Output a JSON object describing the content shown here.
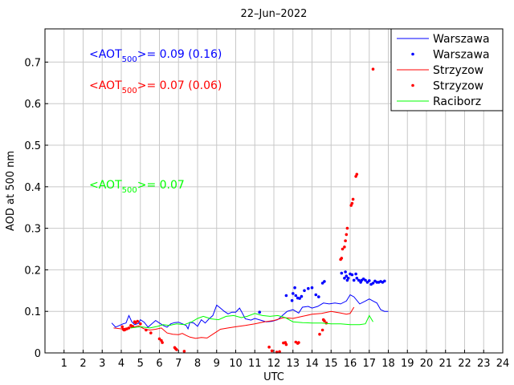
{
  "chart_data": {
    "type": "line",
    "title": "22–Jun–2022",
    "xlabel": "UTC",
    "ylabel": "AOD at 500 nm",
    "xlim": [
      0,
      24
    ],
    "ylim": [
      0,
      0.78
    ],
    "xticks": [
      "1",
      "2",
      "3",
      "4",
      "5",
      "6",
      "7",
      "8",
      "9",
      "10",
      "11",
      "12",
      "13",
      "14",
      "15",
      "16",
      "17",
      "18",
      "19",
      "20",
      "21",
      "22",
      "23",
      "24"
    ],
    "yticks": [
      "0",
      "0.1",
      "0.2",
      "0.3",
      "0.4",
      "0.5",
      "0.6",
      "0.7"
    ],
    "grid": true,
    "legend_position": "top-right",
    "annotations": [
      {
        "prefix": "<AOT",
        "sub": "500",
        "suffix": ">= 0.09 (0.16)",
        "color": "#0000ff"
      },
      {
        "prefix": "<AOT",
        "sub": "500",
        "suffix": ">= 0.07 (0.06)",
        "color": "#ff0000"
      },
      {
        "prefix": "<AOT",
        "sub": "500",
        "suffix": ">= 0.07",
        "color": "#00ff00"
      }
    ],
    "series": [
      {
        "name": "Warszawa",
        "style": "line",
        "color": "#0000ff",
        "points": [
          [
            3.5,
            0.072
          ],
          [
            3.7,
            0.062
          ],
          [
            3.9,
            0.066
          ],
          [
            4.1,
            0.07
          ],
          [
            4.25,
            0.072
          ],
          [
            4.4,
            0.09
          ],
          [
            4.55,
            0.075
          ],
          [
            4.7,
            0.068
          ],
          [
            4.9,
            0.071
          ],
          [
            5.0,
            0.08
          ],
          [
            5.2,
            0.074
          ],
          [
            5.4,
            0.062
          ],
          [
            5.6,
            0.07
          ],
          [
            5.8,
            0.078
          ],
          [
            6.0,
            0.072
          ],
          [
            6.2,
            0.066
          ],
          [
            6.4,
            0.062
          ],
          [
            6.6,
            0.07
          ],
          [
            6.8,
            0.073
          ],
          [
            7.0,
            0.074
          ],
          [
            7.2,
            0.07
          ],
          [
            7.4,
            0.066
          ],
          [
            7.5,
            0.058
          ],
          [
            7.6,
            0.074
          ],
          [
            7.8,
            0.072
          ],
          [
            8.0,
            0.064
          ],
          [
            8.2,
            0.08
          ],
          [
            8.4,
            0.072
          ],
          [
            8.6,
            0.082
          ],
          [
            8.8,
            0.09
          ],
          [
            9.0,
            0.115
          ],
          [
            9.2,
            0.108
          ],
          [
            9.4,
            0.1
          ],
          [
            9.6,
            0.094
          ],
          [
            9.8,
            0.098
          ],
          [
            10.0,
            0.098
          ],
          [
            10.2,
            0.108
          ],
          [
            10.3,
            0.1
          ],
          [
            10.5,
            0.082
          ],
          [
            10.8,
            0.079
          ],
          [
            11.0,
            0.083
          ],
          [
            11.3,
            0.079
          ],
          [
            11.6,
            0.075
          ],
          [
            11.9,
            0.076
          ],
          [
            12.2,
            0.08
          ],
          [
            12.5,
            0.092
          ],
          [
            12.7,
            0.1
          ],
          [
            13.0,
            0.104
          ],
          [
            13.3,
            0.096
          ],
          [
            13.5,
            0.11
          ],
          [
            13.8,
            0.112
          ],
          [
            14.0,
            0.108
          ],
          [
            14.3,
            0.112
          ],
          [
            14.6,
            0.12
          ],
          [
            14.9,
            0.118
          ],
          [
            15.2,
            0.12
          ],
          [
            15.5,
            0.118
          ],
          [
            15.8,
            0.125
          ],
          [
            16.0,
            0.14
          ],
          [
            16.2,
            0.135
          ],
          [
            16.5,
            0.118
          ],
          [
            16.8,
            0.125
          ],
          [
            17.0,
            0.13
          ],
          [
            17.2,
            0.125
          ],
          [
            17.4,
            0.12
          ],
          [
            17.6,
            0.104
          ],
          [
            17.8,
            0.1
          ],
          [
            18.0,
            0.1
          ]
        ]
      },
      {
        "name": "Warszawa",
        "style": "points",
        "color": "#0000ff",
        "points": [
          [
            11.25,
            0.098
          ],
          [
            12.65,
            0.138
          ],
          [
            12.95,
            0.126
          ],
          [
            13.0,
            0.143
          ],
          [
            13.1,
            0.157
          ],
          [
            13.15,
            0.138
          ],
          [
            13.25,
            0.132
          ],
          [
            13.35,
            0.131
          ],
          [
            13.45,
            0.136
          ],
          [
            13.6,
            0.15
          ],
          [
            13.8,
            0.155
          ],
          [
            14.0,
            0.157
          ],
          [
            14.2,
            0.14
          ],
          [
            14.35,
            0.135
          ],
          [
            14.55,
            0.168
          ],
          [
            14.65,
            0.172
          ],
          [
            15.55,
            0.192
          ],
          [
            15.7,
            0.18
          ],
          [
            15.75,
            0.195
          ],
          [
            15.8,
            0.185
          ],
          [
            15.85,
            0.175
          ],
          [
            15.9,
            0.18
          ],
          [
            16.0,
            0.19
          ],
          [
            16.1,
            0.188
          ],
          [
            16.2,
            0.175
          ],
          [
            16.3,
            0.19
          ],
          [
            16.35,
            0.18
          ],
          [
            16.45,
            0.175
          ],
          [
            16.55,
            0.17
          ],
          [
            16.6,
            0.175
          ],
          [
            16.7,
            0.178
          ],
          [
            16.8,
            0.175
          ],
          [
            16.9,
            0.17
          ],
          [
            17.0,
            0.174
          ],
          [
            17.1,
            0.165
          ],
          [
            17.2,
            0.168
          ],
          [
            17.3,
            0.173
          ],
          [
            17.4,
            0.17
          ],
          [
            17.5,
            0.17
          ],
          [
            17.6,
            0.172
          ],
          [
            17.7,
            0.17
          ],
          [
            17.8,
            0.173
          ]
        ]
      },
      {
        "name": "Strzyzow",
        "style": "line",
        "color": "#ff0000",
        "points": [
          [
            3.6,
            0.06
          ],
          [
            4.0,
            0.058
          ],
          [
            4.3,
            0.06
          ],
          [
            4.6,
            0.062
          ],
          [
            4.9,
            0.065
          ],
          [
            5.2,
            0.058
          ],
          [
            5.5,
            0.055
          ],
          [
            5.8,
            0.057
          ],
          [
            6.1,
            0.06
          ],
          [
            6.4,
            0.048
          ],
          [
            6.7,
            0.045
          ],
          [
            7.0,
            0.044
          ],
          [
            7.2,
            0.047
          ],
          [
            7.4,
            0.042
          ],
          [
            7.6,
            0.038
          ],
          [
            7.9,
            0.035
          ],
          [
            8.2,
            0.037
          ],
          [
            8.5,
            0.036
          ],
          [
            8.8,
            0.045
          ],
          [
            9.2,
            0.057
          ],
          [
            9.6,
            0.06
          ],
          [
            10.0,
            0.063
          ],
          [
            10.5,
            0.066
          ],
          [
            11.0,
            0.07
          ],
          [
            11.5,
            0.075
          ],
          [
            12.0,
            0.078
          ],
          [
            12.5,
            0.085
          ],
          [
            13.0,
            0.083
          ],
          [
            13.5,
            0.088
          ],
          [
            14.0,
            0.093
          ],
          [
            14.5,
            0.095
          ],
          [
            15.0,
            0.1
          ],
          [
            15.5,
            0.096
          ],
          [
            15.8,
            0.093
          ],
          [
            16.0,
            0.095
          ],
          [
            16.2,
            0.11
          ]
        ]
      },
      {
        "name": "Strzyzow",
        "style": "points",
        "color": "#ff0000",
        "points": [
          [
            4.05,
            0.063
          ],
          [
            4.1,
            0.057
          ],
          [
            4.15,
            0.055
          ],
          [
            4.2,
            0.056
          ],
          [
            4.3,
            0.058
          ],
          [
            4.4,
            0.06
          ],
          [
            4.5,
            0.066
          ],
          [
            4.6,
            0.064
          ],
          [
            4.7,
            0.075
          ],
          [
            4.75,
            0.073
          ],
          [
            4.85,
            0.076
          ],
          [
            5.0,
            0.07
          ],
          [
            5.3,
            0.055
          ],
          [
            5.55,
            0.048
          ],
          [
            6.0,
            0.034
          ],
          [
            6.1,
            0.03
          ],
          [
            6.15,
            0.025
          ],
          [
            6.8,
            0.013
          ],
          [
            6.85,
            0.01
          ],
          [
            6.9,
            0.008
          ],
          [
            7.3,
            0.004
          ],
          [
            11.75,
            0.014
          ],
          [
            11.9,
            0.005
          ],
          [
            12.15,
            0.002
          ],
          [
            12.3,
            0.003
          ],
          [
            12.5,
            0.024
          ],
          [
            12.6,
            0.025
          ],
          [
            12.65,
            0.02
          ],
          [
            13.15,
            0.026
          ],
          [
            13.25,
            0.023
          ],
          [
            13.3,
            0.025
          ],
          [
            14.4,
            0.045
          ],
          [
            14.55,
            0.055
          ],
          [
            14.6,
            0.08
          ],
          [
            14.65,
            0.077
          ],
          [
            14.75,
            0.072
          ],
          [
            15.5,
            0.225
          ],
          [
            15.55,
            0.228
          ],
          [
            15.6,
            0.25
          ],
          [
            15.7,
            0.255
          ],
          [
            15.75,
            0.27
          ],
          [
            15.8,
            0.285
          ],
          [
            15.85,
            0.3
          ],
          [
            16.05,
            0.355
          ],
          [
            16.1,
            0.36
          ],
          [
            16.15,
            0.37
          ],
          [
            16.3,
            0.425
          ],
          [
            16.35,
            0.43
          ],
          [
            17.2,
            0.683
          ]
        ]
      },
      {
        "name": "Raciborz",
        "style": "line",
        "color": "#00ff00",
        "points": [
          [
            4.5,
            0.06
          ],
          [
            5.0,
            0.063
          ],
          [
            5.5,
            0.06
          ],
          [
            5.9,
            0.064
          ],
          [
            6.2,
            0.068
          ],
          [
            6.5,
            0.066
          ],
          [
            6.9,
            0.07
          ],
          [
            7.3,
            0.068
          ],
          [
            7.7,
            0.075
          ],
          [
            8.0,
            0.083
          ],
          [
            8.3,
            0.088
          ],
          [
            8.7,
            0.082
          ],
          [
            9.1,
            0.08
          ],
          [
            9.5,
            0.088
          ],
          [
            9.9,
            0.09
          ],
          [
            10.3,
            0.085
          ],
          [
            10.6,
            0.088
          ],
          [
            11.0,
            0.095
          ],
          [
            11.4,
            0.09
          ],
          [
            11.8,
            0.088
          ],
          [
            12.2,
            0.09
          ],
          [
            12.6,
            0.085
          ],
          [
            13.0,
            0.075
          ],
          [
            13.5,
            0.073
          ],
          [
            14.0,
            0.072
          ],
          [
            14.5,
            0.072
          ],
          [
            15.0,
            0.07
          ],
          [
            15.5,
            0.07
          ],
          [
            16.0,
            0.068
          ],
          [
            16.5,
            0.068
          ],
          [
            16.8,
            0.07
          ],
          [
            17.0,
            0.09
          ],
          [
            17.2,
            0.075
          ]
        ]
      }
    ]
  }
}
